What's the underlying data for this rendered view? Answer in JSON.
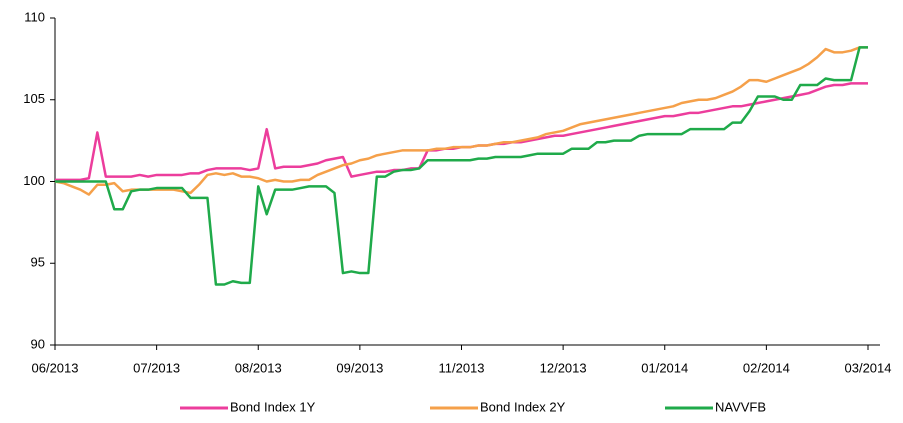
{
  "chart_data": {
    "type": "line",
    "categories": [
      "06/2013",
      null,
      null,
      null,
      null,
      null,
      null,
      null,
      null,
      null,
      null,
      null,
      "07/2013",
      null,
      null,
      null,
      null,
      null,
      null,
      null,
      null,
      null,
      null,
      null,
      "08/2013",
      null,
      null,
      null,
      null,
      null,
      null,
      null,
      null,
      null,
      null,
      null,
      "09/2013",
      null,
      null,
      null,
      null,
      null,
      null,
      null,
      null,
      null,
      null,
      null,
      "11/2013",
      null,
      null,
      null,
      null,
      null,
      null,
      null,
      null,
      null,
      null,
      null,
      "12/2013",
      null,
      null,
      null,
      null,
      null,
      null,
      null,
      null,
      null,
      null,
      null,
      "01/2014",
      null,
      null,
      null,
      null,
      null,
      null,
      null,
      null,
      null,
      null,
      null,
      "02/2014",
      null,
      null,
      null,
      null,
      null,
      null,
      null,
      null,
      null,
      null,
      null,
      "03/2014"
    ],
    "series": [
      {
        "name": "Bond Index 1Y",
        "color": "#ec3d9c",
        "values": [
          100.1,
          100.1,
          100.1,
          100.1,
          100.2,
          103.0,
          100.3,
          100.3,
          100.3,
          100.3,
          100.4,
          100.3,
          100.4,
          100.4,
          100.4,
          100.4,
          100.5,
          100.5,
          100.7,
          100.8,
          100.8,
          100.8,
          100.8,
          100.7,
          100.8,
          103.2,
          100.8,
          100.9,
          100.9,
          100.9,
          101.0,
          101.1,
          101.3,
          101.4,
          101.5,
          100.3,
          100.4,
          100.5,
          100.6,
          100.6,
          100.7,
          100.7,
          100.8,
          100.8,
          101.9,
          101.9,
          102.0,
          102.0,
          102.1,
          102.1,
          102.2,
          102.2,
          102.3,
          102.3,
          102.4,
          102.4,
          102.5,
          102.6,
          102.7,
          102.8,
          102.8,
          102.9,
          103.0,
          103.1,
          103.2,
          103.3,
          103.4,
          103.5,
          103.6,
          103.7,
          103.8,
          103.9,
          104.0,
          104.0,
          104.1,
          104.2,
          104.2,
          104.3,
          104.4,
          104.5,
          104.6,
          104.6,
          104.7,
          104.8,
          104.9,
          105.0,
          105.1,
          105.2,
          105.3,
          105.4,
          105.6,
          105.8,
          105.9,
          105.9,
          106.0,
          106.0,
          106.0
        ]
      },
      {
        "name": "Bond Index 2Y",
        "color": "#f5a04a",
        "values": [
          100.0,
          99.9,
          99.7,
          99.5,
          99.2,
          99.8,
          99.8,
          99.9,
          99.4,
          99.5,
          99.5,
          99.5,
          99.5,
          99.5,
          99.5,
          99.4,
          99.3,
          99.8,
          100.4,
          100.5,
          100.4,
          100.5,
          100.3,
          100.3,
          100.2,
          100.0,
          100.1,
          100.0,
          100.0,
          100.1,
          100.1,
          100.4,
          100.6,
          100.8,
          101.0,
          101.1,
          101.3,
          101.4,
          101.6,
          101.7,
          101.8,
          101.9,
          101.9,
          101.9,
          101.9,
          102.0,
          102.0,
          102.1,
          102.1,
          102.1,
          102.2,
          102.2,
          102.3,
          102.4,
          102.4,
          102.5,
          102.6,
          102.7,
          102.9,
          103.0,
          103.1,
          103.3,
          103.5,
          103.6,
          103.7,
          103.8,
          103.9,
          104.0,
          104.1,
          104.2,
          104.3,
          104.4,
          104.5,
          104.6,
          104.8,
          104.9,
          105.0,
          105.0,
          105.1,
          105.3,
          105.5,
          105.8,
          106.2,
          106.2,
          106.1,
          106.3,
          106.5,
          106.7,
          106.9,
          107.2,
          107.6,
          108.1,
          107.9,
          107.9,
          108.0,
          108.2,
          108.2
        ]
      },
      {
        "name": "NAVVFB",
        "color": "#1faa4a",
        "values": [
          100.0,
          100.0,
          100.0,
          100.0,
          100.0,
          100.0,
          100.0,
          98.3,
          98.3,
          99.4,
          99.5,
          99.5,
          99.6,
          99.6,
          99.6,
          99.6,
          99.0,
          99.0,
          99.0,
          93.7,
          93.7,
          93.9,
          93.8,
          93.8,
          99.7,
          98.0,
          99.5,
          99.5,
          99.5,
          99.6,
          99.7,
          99.7,
          99.7,
          99.3,
          94.4,
          94.5,
          94.4,
          94.4,
          100.3,
          100.3,
          100.6,
          100.7,
          100.7,
          100.8,
          101.3,
          101.3,
          101.3,
          101.3,
          101.3,
          101.3,
          101.4,
          101.4,
          101.5,
          101.5,
          101.5,
          101.5,
          101.6,
          101.7,
          101.7,
          101.7,
          101.7,
          102.0,
          102.0,
          102.0,
          102.4,
          102.4,
          102.5,
          102.5,
          102.5,
          102.8,
          102.9,
          102.9,
          102.9,
          102.9,
          102.9,
          103.2,
          103.2,
          103.2,
          103.2,
          103.2,
          103.6,
          103.6,
          104.3,
          105.2,
          105.2,
          105.2,
          105.0,
          105.0,
          105.9,
          105.9,
          105.9,
          106.3,
          106.2,
          106.2,
          106.2,
          108.2,
          108.2
        ]
      }
    ],
    "ylim": [
      90,
      110
    ],
    "yticks": [
      90,
      95,
      100,
      105,
      110
    ],
    "grid": false,
    "legend": "bottom"
  }
}
